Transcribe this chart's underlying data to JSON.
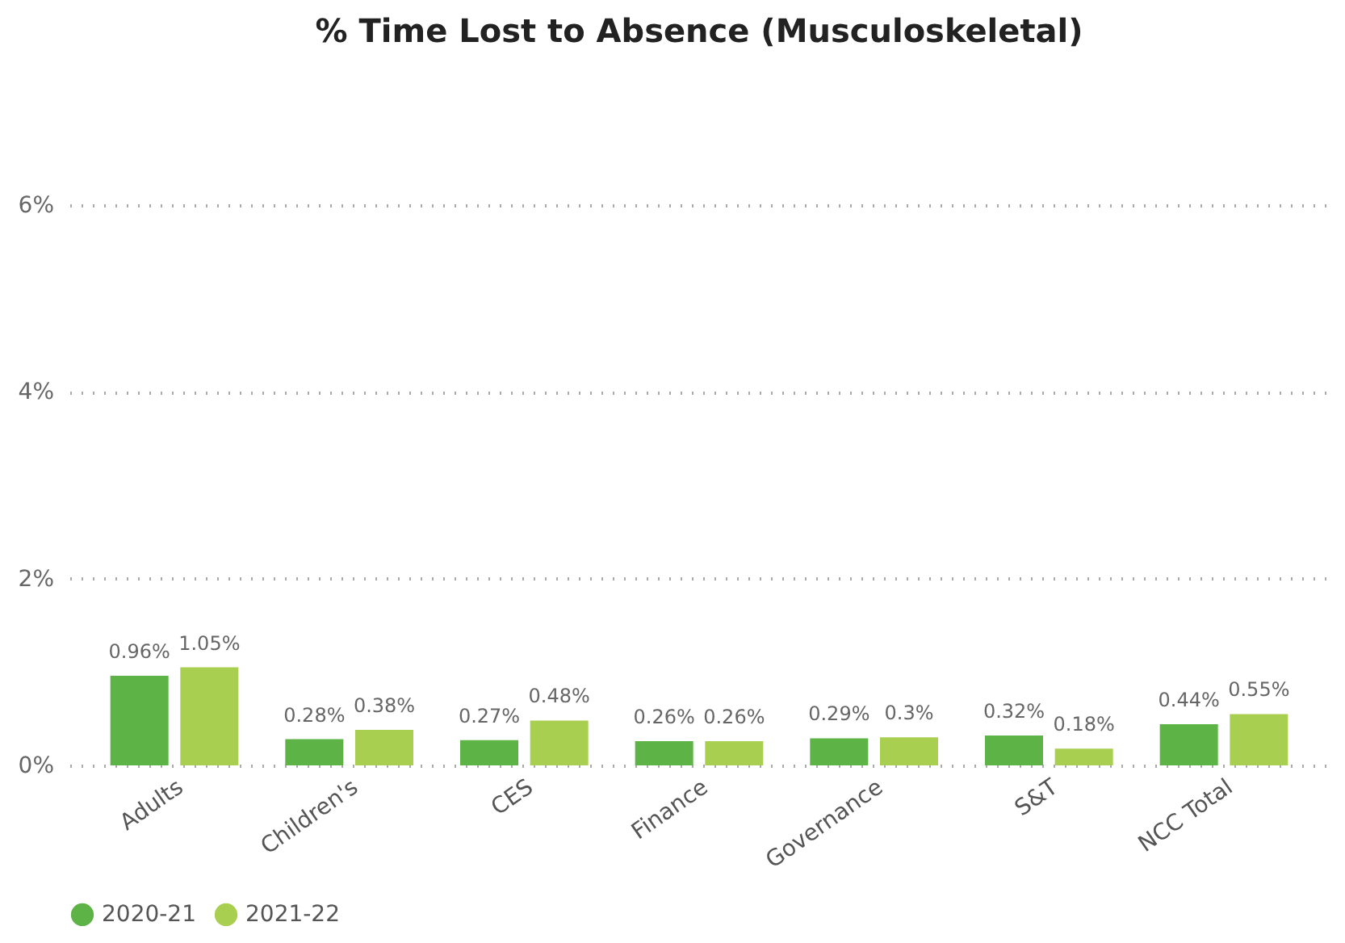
{
  "chart_data": {
    "type": "bar",
    "title": "% Time Lost to Absence (Musculoskeletal)",
    "categories": [
      "Adults",
      "Children's",
      "CES",
      "Finance",
      "Governance",
      "S&T",
      "NCC Total"
    ],
    "series": [
      {
        "name": "2020-21",
        "color": "#5db346",
        "values": [
          0.96,
          0.28,
          0.27,
          0.26,
          0.29,
          0.32,
          0.44
        ],
        "value_labels": [
          "0.96%",
          "0.28%",
          "0.27%",
          "0.26%",
          "0.29%",
          "0.32%",
          "0.44%"
        ]
      },
      {
        "name": "2021-22",
        "color": "#a9cf50",
        "values": [
          1.05,
          0.38,
          0.48,
          0.26,
          0.3,
          0.18,
          0.55
        ],
        "value_labels": [
          "1.05%",
          "0.38%",
          "0.48%",
          "0.26%",
          "0.3%",
          "0.18%",
          "0.55%"
        ]
      }
    ],
    "ylim": [
      0,
      6
    ],
    "yticks": [
      {
        "value": 0,
        "label": "0%"
      },
      {
        "value": 2,
        "label": "2%"
      },
      {
        "value": 4,
        "label": "4%"
      },
      {
        "value": 6,
        "label": "6%"
      }
    ],
    "grid": "y",
    "legend": "bottom"
  }
}
